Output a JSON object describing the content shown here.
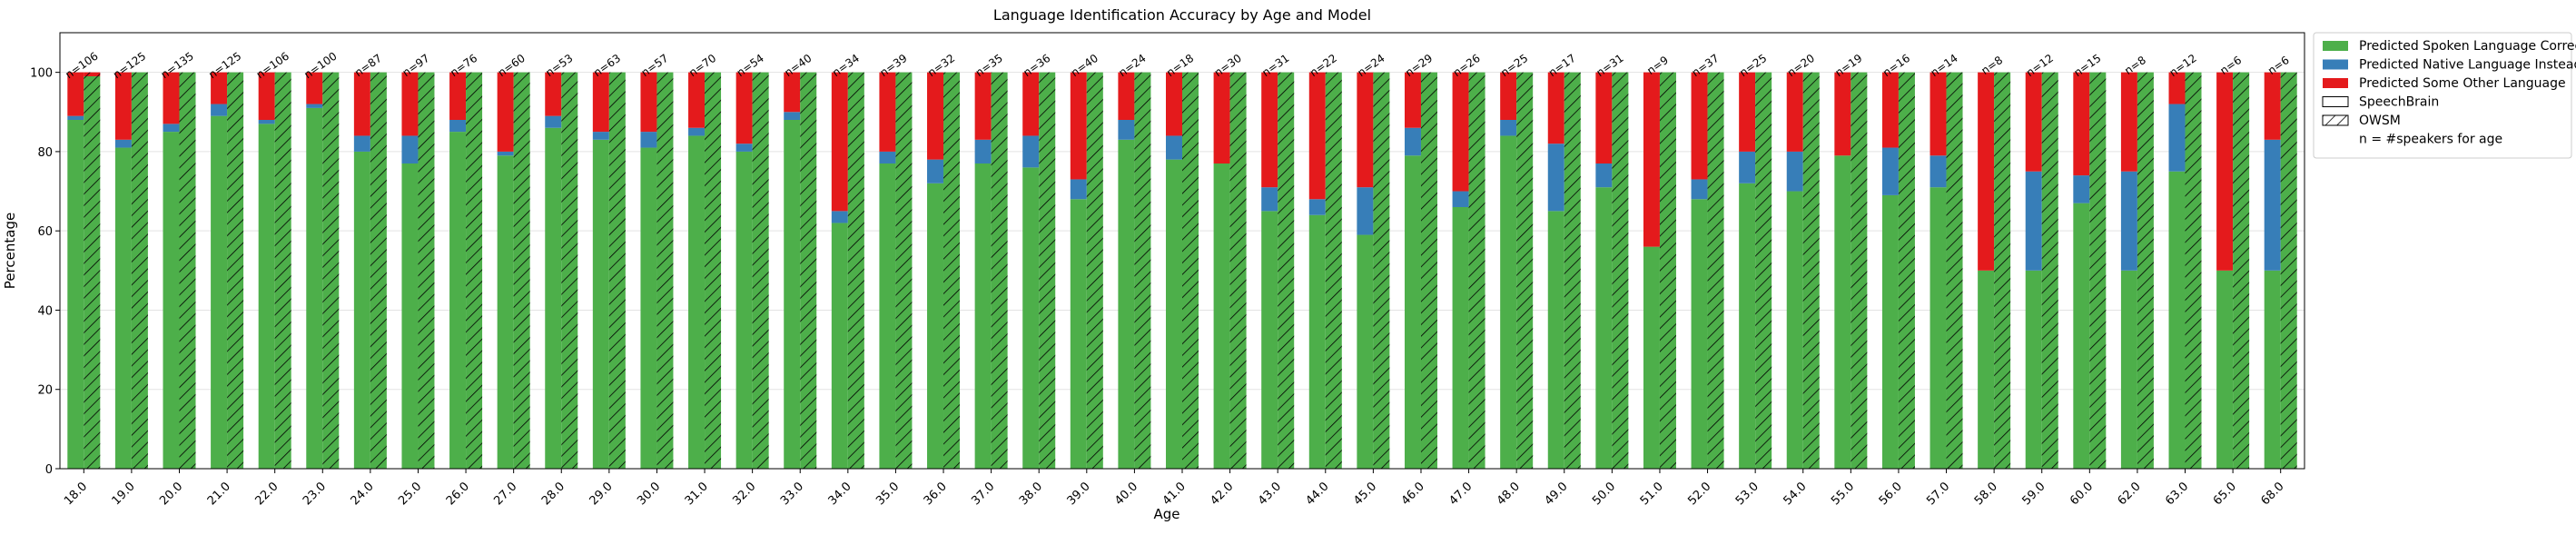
{
  "chart_data": {
    "type": "bar",
    "title": "Language Identification Accuracy by Age and Model",
    "xlabel": "Age",
    "ylabel": "Percentage",
    "ylim": [
      0,
      110
    ],
    "yticks": [
      0,
      20,
      40,
      60,
      80,
      100
    ],
    "grid": "y",
    "legend_position": "upper-right-outside",
    "colors": {
      "correct": "#4daf4a",
      "native": "#377eb8",
      "other": "#e41a1c"
    },
    "legend": [
      {
        "label": "Predicted Spoken Language Correctly",
        "kind": "correct"
      },
      {
        "label": "Predicted Native Language Instead",
        "kind": "native"
      },
      {
        "label": "Predicted Some Other Language",
        "kind": "other"
      },
      {
        "label": "SpeechBrain",
        "kind": "plain"
      },
      {
        "label": "OWSM",
        "kind": "hatch"
      },
      {
        "label": "n = #speakers for age",
        "kind": "none"
      }
    ],
    "categories": [
      "18.0",
      "19.0",
      "20.0",
      "21.0",
      "22.0",
      "23.0",
      "24.0",
      "25.0",
      "26.0",
      "27.0",
      "28.0",
      "29.0",
      "30.0",
      "31.0",
      "32.0",
      "33.0",
      "34.0",
      "35.0",
      "36.0",
      "37.0",
      "38.0",
      "39.0",
      "40.0",
      "41.0",
      "42.0",
      "43.0",
      "44.0",
      "45.0",
      "46.0",
      "47.0",
      "48.0",
      "49.0",
      "50.0",
      "51.0",
      "52.0",
      "53.0",
      "54.0",
      "55.0",
      "56.0",
      "57.0",
      "58.0",
      "59.0",
      "60.0",
      "62.0",
      "63.0",
      "65.0",
      "68.0"
    ],
    "n_labels": [
      "n=106",
      "n=125",
      "n=135",
      "n=125",
      "n=106",
      "n=100",
      "n=87",
      "n=97",
      "n=76",
      "n=60",
      "n=53",
      "n=63",
      "n=57",
      "n=70",
      "n=54",
      "n=40",
      "n=34",
      "n=39",
      "n=32",
      "n=35",
      "n=36",
      "n=40",
      "n=24",
      "n=18",
      "n=30",
      "n=31",
      "n=22",
      "n=24",
      "n=29",
      "n=26",
      "n=25",
      "n=17",
      "n=31",
      "n=9",
      "n=37",
      "n=25",
      "n=20",
      "n=19",
      "n=16",
      "n=14",
      "n=8",
      "n=12",
      "n=15",
      "n=8",
      "n=12",
      "n=6",
      "n=6"
    ],
    "series": [
      {
        "name": "SpeechBrain",
        "correct": [
          88,
          81,
          85,
          89,
          87,
          91,
          80,
          77,
          85,
          79,
          86,
          83,
          81,
          84,
          80,
          88,
          62,
          77,
          72,
          77,
          76,
          68,
          83,
          78,
          77,
          65,
          64,
          59,
          79,
          66,
          84,
          65,
          71,
          56,
          68,
          72,
          70,
          79,
          69,
          71,
          50,
          50,
          67,
          50,
          75,
          50,
          50
        ],
        "native": [
          1,
          2,
          2,
          3,
          1,
          1,
          4,
          7,
          3,
          1,
          3,
          2,
          4,
          2,
          2,
          2,
          3,
          3,
          6,
          6,
          8,
          5,
          5,
          6,
          0,
          6,
          4,
          12,
          7,
          4,
          4,
          17,
          6,
          0,
          5,
          8,
          10,
          0,
          12,
          8,
          0,
          25,
          7,
          25,
          17,
          0,
          33
        ],
        "other": [
          11,
          17,
          13,
          8,
          12,
          8,
          16,
          16,
          12,
          20,
          11,
          15,
          15,
          14,
          18,
          10,
          35,
          20,
          22,
          17,
          16,
          27,
          12,
          16,
          23,
          29,
          32,
          29,
          14,
          30,
          12,
          18,
          23,
          44,
          27,
          20,
          20,
          21,
          19,
          21,
          50,
          25,
          26,
          25,
          8,
          50,
          17
        ]
      },
      {
        "name": "OWSM",
        "correct": [
          99,
          100,
          100,
          100,
          100,
          100,
          100,
          100,
          100,
          100,
          100,
          100,
          100,
          100,
          100,
          100,
          100,
          100,
          100,
          100,
          100,
          100,
          100,
          100,
          100,
          100,
          100,
          100,
          100,
          100,
          100,
          100,
          100,
          100,
          100,
          100,
          100,
          100,
          100,
          100,
          100,
          100,
          100,
          100,
          100,
          100,
          100
        ],
        "native": [
          0,
          0,
          0,
          0,
          0,
          0,
          0,
          0,
          0,
          0,
          0,
          0,
          0,
          0,
          0,
          0,
          0,
          0,
          0,
          0,
          0,
          0,
          0,
          0,
          0,
          0,
          0,
          0,
          0,
          0,
          0,
          0,
          0,
          0,
          0,
          0,
          0,
          0,
          0,
          0,
          0,
          0,
          0,
          0,
          0,
          0,
          0
        ],
        "other": [
          1,
          0,
          0,
          0,
          0,
          0,
          0,
          0,
          0,
          0,
          0,
          0,
          0,
          0,
          0,
          0,
          0,
          0,
          0,
          0,
          0,
          0,
          0,
          0,
          0,
          0,
          0,
          0,
          0,
          0,
          0,
          0,
          0,
          0,
          0,
          0,
          0,
          0,
          0,
          0,
          0,
          0,
          0,
          0,
          0,
          0,
          0
        ]
      }
    ]
  }
}
